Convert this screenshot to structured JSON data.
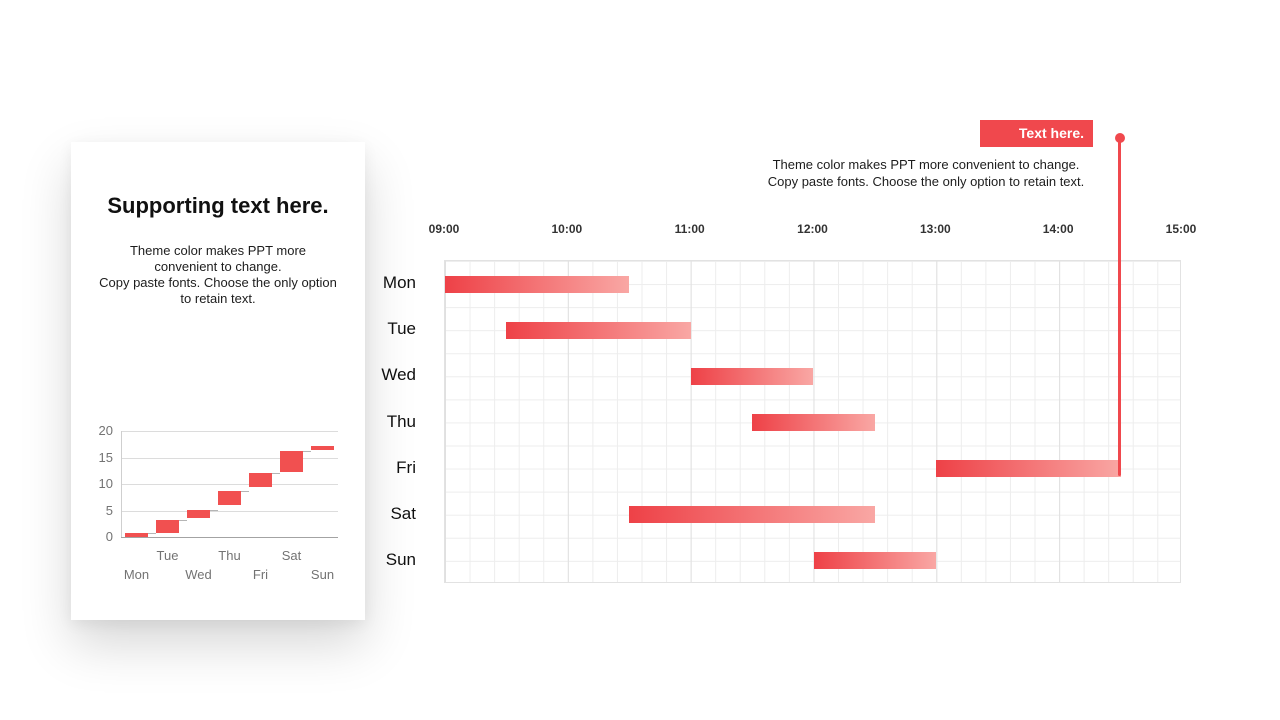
{
  "slide": {
    "background": "#ffffff"
  },
  "colors": {
    "red": "#F0484D",
    "bar_gradient_start": "#EE4147",
    "bar_gradient_end": "#F9A7A4",
    "mini_bar": "#F15050",
    "grid_minor": "#EDEDED",
    "grid_hour": "#E0E0E0",
    "plot_border": "#E2E2E2",
    "axis_text": "#333333",
    "muted_text": "#737373"
  },
  "card": {
    "title": "Supporting text here.",
    "body_lines": [
      "Theme color makes PPT more",
      "convenient to change.",
      "Copy paste fonts. Choose the only option",
      "to retain text."
    ]
  },
  "callout": {
    "badge_label": "Text here.",
    "text_lines": [
      "Theme color makes PPT more convenient to change.",
      "Copy paste fonts. Choose the only option to retain text."
    ],
    "marker_time": "14:30"
  },
  "chart_data": [
    {
      "id": "weekly-gantt",
      "type": "bar",
      "subtype": "gantt",
      "title": "",
      "categories": [
        "Mon",
        "Tue",
        "Wed",
        "Thu",
        "Fri",
        "Sat",
        "Sun"
      ],
      "x_tick_labels": [
        "09:00",
        "10:00",
        "11:00",
        "12:00",
        "13:00",
        "14:00",
        "15:00"
      ],
      "xlim_hours": [
        9,
        15
      ],
      "grid": {
        "minor_minutes": 12,
        "hour_lines": true,
        "half_row_lines": true
      },
      "bars": [
        {
          "day": "Mon",
          "start": "09:00",
          "end": "10:30",
          "start_h": 9.0,
          "end_h": 10.5
        },
        {
          "day": "Tue",
          "start": "09:30",
          "end": "11:00",
          "start_h": 9.5,
          "end_h": 11.0
        },
        {
          "day": "Wed",
          "start": "11:00",
          "end": "12:00",
          "start_h": 11.0,
          "end_h": 12.0
        },
        {
          "day": "Thu",
          "start": "11:30",
          "end": "12:30",
          "start_h": 11.5,
          "end_h": 12.5
        },
        {
          "day": "Fri",
          "start": "13:00",
          "end": "14:30",
          "start_h": 13.0,
          "end_h": 14.5
        },
        {
          "day": "Sat",
          "start": "10:30",
          "end": "12:30",
          "start_h": 10.5,
          "end_h": 12.5
        },
        {
          "day": "Sun",
          "start": "12:00",
          "end": "13:00",
          "start_h": 12.0,
          "end_h": 13.0
        }
      ],
      "marker": {
        "label": "Text here.",
        "time": "14:30",
        "hour": 14.5,
        "points_to": "end of Fri bar"
      }
    },
    {
      "id": "mini-waterfall",
      "type": "bar",
      "subtype": "waterfall",
      "title": "",
      "categories": [
        "Mon",
        "Tue",
        "Wed",
        "Thu",
        "Fri",
        "Sat",
        "Sun"
      ],
      "y_ticks": [
        0,
        5,
        10,
        15,
        20
      ],
      "ylim": [
        0,
        20
      ],
      "bars": [
        {
          "day": "Mon",
          "from": 0.0,
          "to": 0.8
        },
        {
          "day": "Tue",
          "from": 0.8,
          "to": 3.2
        },
        {
          "day": "Wed",
          "from": 3.6,
          "to": 5.1
        },
        {
          "day": "Thu",
          "from": 6.0,
          "to": 8.7
        },
        {
          "day": "Fri",
          "from": 9.5,
          "to": 12.1
        },
        {
          "day": "Sat",
          "from": 12.3,
          "to": 16.3
        },
        {
          "day": "Sun",
          "from": 16.5,
          "to": 17.2
        }
      ],
      "x_label_rows": {
        "upper": [
          "Tue",
          "Thu",
          "Sat"
        ],
        "lower": [
          "Mon",
          "Wed",
          "Fri",
          "Sun"
        ]
      },
      "legend": "none",
      "grid": "horizontal"
    }
  ]
}
